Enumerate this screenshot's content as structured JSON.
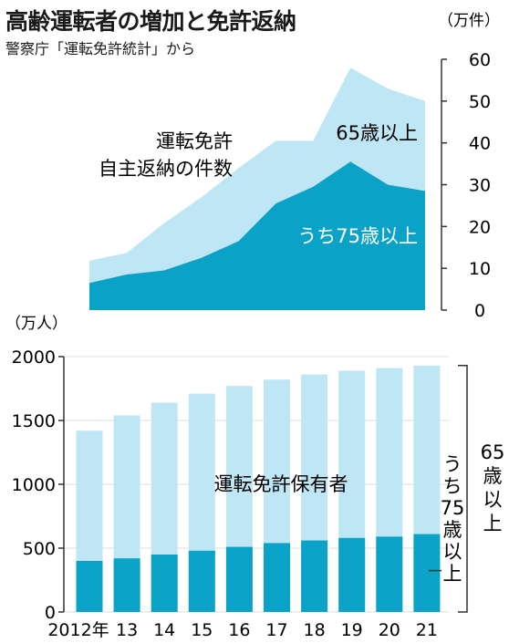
{
  "header": {
    "title": "高齢運転者の増加と免許返納",
    "source": "警察庁「運転免許統計」から"
  },
  "colors": {
    "light": "#bfe6f5",
    "dark": "#0aa3c7",
    "axis": "#333333"
  },
  "chart_data": [
    {
      "type": "area",
      "unit_label": "（万件）",
      "title": "",
      "area_label": [
        "運転免許",
        "自主返納の件数"
      ],
      "x": [
        2012,
        2013,
        2014,
        2015,
        2016,
        2017,
        2018,
        2019,
        2020,
        2021
      ],
      "ylim": [
        0,
        60
      ],
      "yticks": [
        "0",
        "10",
        "20",
        "30",
        "40",
        "50",
        "60"
      ],
      "series": [
        {
          "name": "65歳以上",
          "values": [
            11.8,
            13.7,
            20.8,
            27.0,
            34.0,
            40.5,
            40.5,
            58.0,
            53.0,
            50.0
          ]
        },
        {
          "name": "うち75歳以上",
          "values": [
            6.5,
            8.5,
            9.5,
            12.5,
            16.5,
            25.5,
            29.5,
            35.5,
            30.0,
            28.5
          ]
        }
      ]
    },
    {
      "type": "bar",
      "unit_label": "（万人）",
      "title": "",
      "bar_label": "運転免許保有者",
      "categories": [
        "2012年",
        "13",
        "14",
        "15",
        "16",
        "17",
        "18",
        "19",
        "20",
        "21"
      ],
      "ylim": [
        0,
        2000
      ],
      "yticks": [
        "0",
        "500",
        "1000",
        "1500",
        "2000"
      ],
      "series": [
        {
          "name": "65歳以上",
          "values": [
            1420,
            1540,
            1640,
            1710,
            1770,
            1820,
            1860,
            1890,
            1910,
            1930
          ]
        },
        {
          "name": "うち75歳以上",
          "values": [
            400,
            420,
            450,
            480,
            510,
            540,
            560,
            580,
            590,
            610
          ]
        }
      ],
      "bracket_labels": {
        "outer": "65歳以上",
        "inner": "うち75歳以上"
      }
    }
  ]
}
